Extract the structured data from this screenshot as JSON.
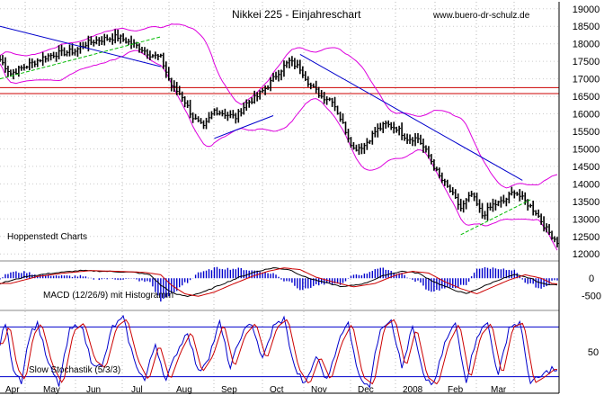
{
  "chart_data": {
    "type": "line",
    "title": "Nikkei 225 - Einjahreschart",
    "watermark": "www.buero-dr-schulz.de",
    "source_label": "Hoppenstedt Charts",
    "panels": [
      {
        "id": "price",
        "series_type": "ohlc",
        "ylim": [
          11800,
          19200
        ],
        "y_ticks": [
          12000,
          12500,
          13000,
          13500,
          14000,
          14500,
          15000,
          15500,
          16000,
          16500,
          17000,
          17500,
          18000,
          18500,
          19000
        ],
        "anchor_points": [
          [
            0,
            17550
          ],
          [
            4,
            17150
          ],
          [
            8,
            17300
          ],
          [
            12,
            17450
          ],
          [
            16,
            17600
          ],
          [
            20,
            17700
          ],
          [
            24,
            17750
          ],
          [
            28,
            17800
          ],
          [
            32,
            18000
          ],
          [
            36,
            18100
          ],
          [
            40,
            18150
          ],
          [
            44,
            18200
          ],
          [
            48,
            18050
          ],
          [
            52,
            17900
          ],
          [
            56,
            17700
          ],
          [
            60,
            17600
          ],
          [
            64,
            16800
          ],
          [
            68,
            16500
          ],
          [
            72,
            15900
          ],
          [
            76,
            15600
          ],
          [
            80,
            16100
          ],
          [
            84,
            16000
          ],
          [
            88,
            15900
          ],
          [
            92,
            16300
          ],
          [
            96,
            16500
          ],
          [
            100,
            16800
          ],
          [
            104,
            17200
          ],
          [
            108,
            17500
          ],
          [
            112,
            17300
          ],
          [
            116,
            16800
          ],
          [
            120,
            16500
          ],
          [
            124,
            16400
          ],
          [
            128,
            15700
          ],
          [
            132,
            15000
          ],
          [
            136,
            15100
          ],
          [
            140,
            15500
          ],
          [
            144,
            15700
          ],
          [
            148,
            15600
          ],
          [
            152,
            15300
          ],
          [
            156,
            15300
          ],
          [
            160,
            14800
          ],
          [
            164,
            14200
          ],
          [
            168,
            13800
          ],
          [
            172,
            13300
          ],
          [
            176,
            13700
          ],
          [
            180,
            13100
          ],
          [
            184,
            13400
          ],
          [
            188,
            13500
          ],
          [
            192,
            13800
          ],
          [
            196,
            13500
          ],
          [
            200,
            13200
          ],
          [
            204,
            12700
          ],
          [
            208,
            12350
          ]
        ],
        "red_horizontal_lines": [
          16750,
          16580
        ],
        "lines": [
          {
            "color": "#0000cc",
            "points": [
              [
                0,
                18500
              ],
              [
                60,
                17350
              ]
            ]
          },
          {
            "color": "#0000cc",
            "points": [
              [
                112,
                17700
              ],
              [
                195,
                14100
              ]
            ]
          },
          {
            "color": "#0000cc",
            "points": [
              [
                80,
                15300
              ],
              [
                102,
                15950
              ]
            ]
          },
          {
            "color": "#00bb00",
            "points": [
              [
                0,
                17000
              ],
              [
                60,
                18200
              ]
            ]
          },
          {
            "color": "#00bb00",
            "points": [
              [
                172,
                12550
              ],
              [
                198,
                13550
              ]
            ]
          }
        ]
      },
      {
        "id": "macd",
        "label": "MACD (12/26/9) mit Histogramm",
        "ylim": [
          -800,
          500
        ],
        "y_ticks": [
          0,
          -500
        ],
        "line_colors": [
          "#000000",
          "#cc0000"
        ],
        "histogram_color": "#0000cc",
        "anchor_points": [
          [
            0,
            -150
          ],
          [
            10,
            50
          ],
          [
            20,
            150
          ],
          [
            30,
            220
          ],
          [
            40,
            200
          ],
          [
            50,
            170
          ],
          [
            56,
            100
          ],
          [
            60,
            -200
          ],
          [
            65,
            -450
          ],
          [
            70,
            -520
          ],
          [
            76,
            -400
          ],
          [
            82,
            -200
          ],
          [
            90,
            50
          ],
          [
            96,
            200
          ],
          [
            102,
            300
          ],
          [
            108,
            250
          ],
          [
            114,
            30
          ],
          [
            120,
            -100
          ],
          [
            128,
            -250
          ],
          [
            136,
            -150
          ],
          [
            144,
            100
          ],
          [
            150,
            200
          ],
          [
            156,
            150
          ],
          [
            162,
            -100
          ],
          [
            168,
            -300
          ],
          [
            174,
            -450
          ],
          [
            180,
            -250
          ],
          [
            186,
            -50
          ],
          [
            192,
            100
          ],
          [
            198,
            0
          ],
          [
            202,
            -150
          ],
          [
            208,
            -200
          ]
        ]
      },
      {
        "id": "stochastic",
        "label": "Slow Stochastik (5/3/3)",
        "ylim": [
          0,
          100
        ],
        "y_ticks": [
          50
        ],
        "reference_lines": [
          80,
          20
        ],
        "line_colors": [
          "#0000cc",
          "#cc0000"
        ],
        "anchor_points": [
          [
            0,
            60
          ],
          [
            2,
            85
          ],
          [
            5,
            30
          ],
          [
            8,
            15
          ],
          [
            11,
            70
          ],
          [
            14,
            85
          ],
          [
            18,
            35
          ],
          [
            22,
            10
          ],
          [
            26,
            75
          ],
          [
            30,
            85
          ],
          [
            34,
            40
          ],
          [
            38,
            30
          ],
          [
            42,
            80
          ],
          [
            46,
            90
          ],
          [
            50,
            40
          ],
          [
            54,
            15
          ],
          [
            58,
            60
          ],
          [
            62,
            15
          ],
          [
            66,
            50
          ],
          [
            70,
            75
          ],
          [
            74,
            25
          ],
          [
            78,
            45
          ],
          [
            82,
            85
          ],
          [
            86,
            30
          ],
          [
            90,
            70
          ],
          [
            94,
            85
          ],
          [
            98,
            40
          ],
          [
            102,
            80
          ],
          [
            106,
            90
          ],
          [
            110,
            30
          ],
          [
            114,
            10
          ],
          [
            118,
            45
          ],
          [
            122,
            15
          ],
          [
            126,
            60
          ],
          [
            130,
            85
          ],
          [
            134,
            20
          ],
          [
            138,
            10
          ],
          [
            142,
            80
          ],
          [
            146,
            90
          ],
          [
            150,
            30
          ],
          [
            154,
            80
          ],
          [
            158,
            20
          ],
          [
            162,
            10
          ],
          [
            166,
            60
          ],
          [
            170,
            85
          ],
          [
            174,
            15
          ],
          [
            178,
            70
          ],
          [
            182,
            85
          ],
          [
            186,
            20
          ],
          [
            190,
            80
          ],
          [
            194,
            85
          ],
          [
            198,
            12
          ],
          [
            202,
            20
          ],
          [
            206,
            30
          ],
          [
            208,
            25
          ]
        ]
      }
    ],
    "x_axis": {
      "months": [
        "Apr",
        "May",
        "Jun",
        "Jul",
        "Aug",
        "Sep",
        "Oct",
        "Nov",
        "Dec",
        "2008",
        "Feb",
        "Mar"
      ]
    }
  }
}
